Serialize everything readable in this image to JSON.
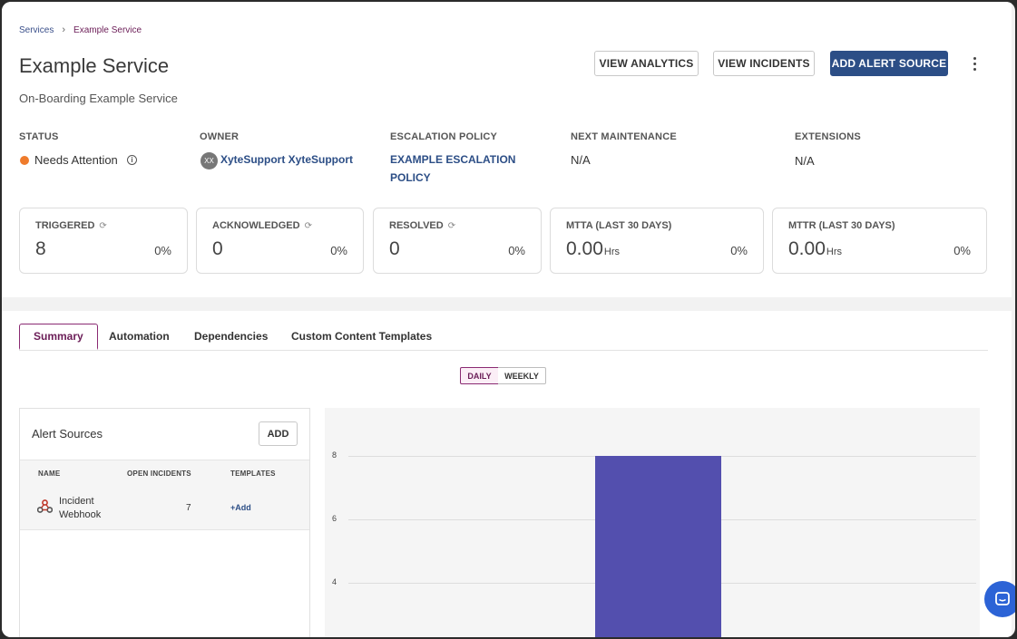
{
  "breadcrumb": {
    "parent": "Services",
    "current": "Example Service"
  },
  "page": {
    "title": "Example Service",
    "subtitle": "On-Boarding Example Service"
  },
  "actions": {
    "view_analytics": "VIEW ANALYTICS",
    "view_incidents": "VIEW INCIDENTS",
    "add_alert_source": "ADD ALERT SOURCE"
  },
  "meta": {
    "status": {
      "label": "STATUS",
      "value": "Needs Attention",
      "color": "#ef7b2c"
    },
    "owner": {
      "label": "OWNER",
      "avatar": "XX",
      "value": "XyteSupport XyteSupport"
    },
    "escalation": {
      "label": "ESCALATION POLICY",
      "line1": "EXAMPLE ESCALATION",
      "line2": "POLICY"
    },
    "maintenance": {
      "label": "NEXT MAINTENANCE",
      "value": "N/A"
    },
    "extensions": {
      "label": "EXTENSIONS",
      "value": "N/A"
    }
  },
  "stats": {
    "triggered": {
      "label": "TRIGGERED",
      "value": "8",
      "pct": "0%"
    },
    "acknowledged": {
      "label": "ACKNOWLEDGED",
      "value": "0",
      "pct": "0%"
    },
    "resolved": {
      "label": "RESOLVED",
      "value": "0",
      "pct": "0%"
    },
    "mtta": {
      "label": "MTTA (LAST 30 DAYS)",
      "value": "0.00",
      "unit": "Hrs",
      "pct": "0%"
    },
    "mttr": {
      "label": "MTTR (LAST 30 DAYS)",
      "value": "0.00",
      "unit": "Hrs",
      "pct": "0%"
    }
  },
  "tabs": {
    "summary": "Summary",
    "automation": "Automation",
    "dependencies": "Dependencies",
    "templates": "Custom Content Templates"
  },
  "toggle": {
    "daily": "DAILY",
    "weekly": "WEEKLY",
    "selected": "DAILY"
  },
  "alert_sources": {
    "title": "Alert Sources",
    "add_label": "ADD",
    "columns": {
      "name": "NAME",
      "open": "OPEN INCIDENTS",
      "templates": "TEMPLATES"
    },
    "rows": [
      {
        "name": "Incident Webhook",
        "open": "7",
        "templates": "+Add"
      }
    ]
  },
  "chart_data": {
    "type": "bar",
    "y_ticks": [
      "8",
      "6",
      "4"
    ],
    "values": [
      8
    ],
    "ylim_visible": [
      3.3,
      8.6
    ],
    "bar_color": "#534fae"
  }
}
